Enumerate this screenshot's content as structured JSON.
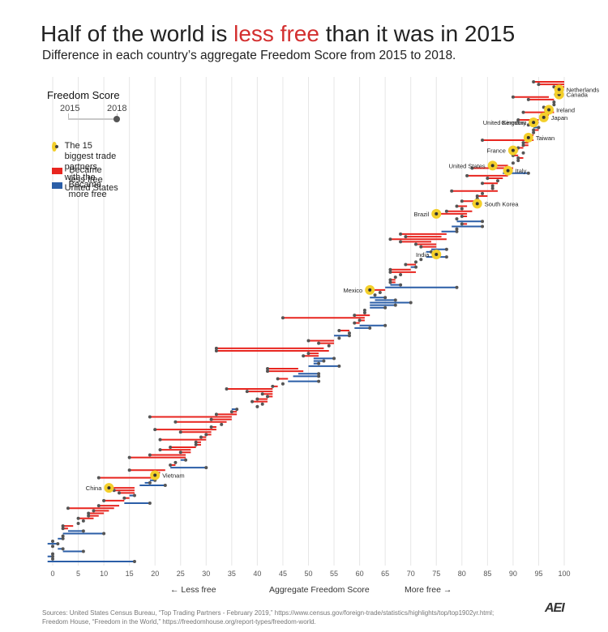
{
  "header": {
    "title_before": "Half of the world is ",
    "title_highlight": "less free",
    "title_after": " than it was in 2015",
    "subtitle": "Difference in each country’s aggregate Freedom Score from 2015 to 2018."
  },
  "legend": {
    "title": "Freedom Score",
    "year_start": "2015",
    "year_end": "2018",
    "trade_partner_line1": "The 15 biggest trade partners",
    "trade_partner_line2": "with the United States",
    "less_free": "Became less free",
    "more_free": "Became more free"
  },
  "axis": {
    "less_free_nav": "← Less free",
    "label": "Aggregate Freedom Score",
    "more_free_nav": "More free →"
  },
  "source": {
    "line1": "Sources: United States Census Bureau, “Top Trading Partners - February 2019,” https://www.census.gov/foreign-trade/statistics/highlights/top/top1902yr.html;",
    "line2": "Freedom House, “Freedom in the World,” https://freedomhouse.org/report-types/freedom-world."
  },
  "logo": "AEI",
  "colors": {
    "less_free": "#e8251f",
    "more_free": "#2b5ea7",
    "trade_partner": "#f3cf2b",
    "endpoint": "#555555",
    "gridline": "#e6e6e6",
    "title_highlight": "#d32f2f"
  },
  "chart_data": {
    "type": "dumbbell",
    "title": "Half of the world is less free than it was in 2015",
    "subtitle": "Difference in each country’s aggregate Freedom Score from 2015 to 2018.",
    "xlabel": "Aggregate Freedom Score",
    "xlim": [
      0,
      100
    ],
    "xticks": [
      0,
      5,
      10,
      15,
      20,
      25,
      30,
      35,
      40,
      45,
      50,
      55,
      60,
      65,
      70,
      75,
      80,
      85,
      90,
      95,
      100
    ],
    "grid": true,
    "legend_position": "top-left",
    "series": [
      {
        "name": "Became less free",
        "color": "#e8251f"
      },
      {
        "name": "Became more free",
        "color": "#2b5ea7"
      }
    ],
    "labeled_countries": [
      {
        "name": "Canada",
        "score_2015": 98,
        "score_2018": 99
      },
      {
        "name": "Netherlands",
        "score_2015": 99,
        "score_2018": 99
      },
      {
        "name": "Ireland",
        "score_2015": 97,
        "score_2018": 97
      },
      {
        "name": "Japan",
        "score_2015": 96,
        "score_2018": 96
      },
      {
        "name": "Germany",
        "score_2015": 95,
        "score_2018": 94
      },
      {
        "name": "United Kingdom",
        "score_2015": 95,
        "score_2018": 94
      },
      {
        "name": "France",
        "score_2015": 91,
        "score_2018": 90
      },
      {
        "name": "United States",
        "score_2015": 89,
        "score_2018": 86
      },
      {
        "name": "Italy",
        "score_2015": 89,
        "score_2018": 89
      },
      {
        "name": "Taiwan",
        "score_2015": 93,
        "score_2018": 93
      },
      {
        "name": "South Korea",
        "score_2015": 82,
        "score_2018": 83
      },
      {
        "name": "Brazil",
        "score_2015": 81,
        "score_2018": 75
      },
      {
        "name": "India",
        "score_2015": 77,
        "score_2018": 75
      },
      {
        "name": "Mexico",
        "score_2015": 65,
        "score_2018": 62
      },
      {
        "name": "Vietnam",
        "score_2015": 20,
        "score_2018": 20
      },
      {
        "name": "China",
        "score_2015": 16,
        "score_2018": 11
      }
    ],
    "countries": [
      [
        100,
        94
      ],
      [
        100,
        95
      ],
      [
        100,
        98
      ],
      [
        99,
        99
      ],
      [
        99,
        99
      ],
      [
        98,
        99
      ],
      [
        97,
        90
      ],
      [
        98,
        93
      ],
      [
        98,
        98
      ],
      [
        98,
        98
      ],
      [
        97,
        96
      ],
      [
        97,
        97
      ],
      [
        98,
        92
      ],
      [
        97,
        96
      ],
      [
        96,
        96
      ],
      [
        95,
        91
      ],
      [
        95,
        94
      ],
      [
        94,
        93
      ],
      [
        94,
        95
      ],
      [
        95,
        94
      ],
      [
        94,
        94
      ],
      [
        94,
        93
      ],
      [
        93,
        93
      ],
      [
        94,
        84
      ],
      [
        93,
        92
      ],
      [
        93,
        92
      ],
      [
        92,
        91
      ],
      [
        91,
        90
      ],
      [
        92,
        92
      ],
      [
        91,
        90
      ],
      [
        92,
        91
      ],
      [
        91,
        91
      ],
      [
        90,
        90
      ],
      [
        89,
        86
      ],
      [
        90,
        82
      ],
      [
        89,
        89
      ],
      [
        88,
        93
      ],
      [
        89,
        81
      ],
      [
        88,
        85
      ],
      [
        87,
        87
      ],
      [
        87,
        84
      ],
      [
        86,
        86
      ],
      [
        86,
        86
      ],
      [
        87,
        78
      ],
      [
        84,
        84
      ],
      [
        85,
        83
      ],
      [
        83,
        83
      ],
      [
        83,
        80
      ],
      [
        82,
        83
      ],
      [
        81,
        79
      ],
      [
        80,
        80
      ],
      [
        82,
        77
      ],
      [
        81,
        75
      ],
      [
        81,
        80
      ],
      [
        79,
        79
      ],
      [
        79,
        84
      ],
      [
        81,
        80
      ],
      [
        78,
        84
      ],
      [
        79,
        79
      ],
      [
        76,
        79
      ],
      [
        77,
        68
      ],
      [
        76,
        69
      ],
      [
        77,
        66
      ],
      [
        74,
        68
      ],
      [
        75,
        71
      ],
      [
        75,
        72
      ],
      [
        74,
        77
      ],
      [
        73,
        74
      ],
      [
        75,
        75
      ],
      [
        73,
        77
      ],
      [
        72,
        72
      ],
      [
        71,
        71
      ],
      [
        71,
        69
      ],
      [
        70,
        71
      ],
      [
        70,
        66
      ],
      [
        71,
        66
      ],
      [
        68,
        68
      ],
      [
        67,
        67
      ],
      [
        67,
        66
      ],
      [
        67,
        66
      ],
      [
        66,
        68
      ],
      [
        65,
        79
      ],
      [
        65,
        62
      ],
      [
        64,
        64
      ],
      [
        63,
        63
      ],
      [
        62,
        65
      ],
      [
        63,
        67
      ],
      [
        62,
        70
      ],
      [
        62,
        67
      ],
      [
        62,
        65
      ],
      [
        61,
        61
      ],
      [
        61,
        61
      ],
      [
        62,
        59
      ],
      [
        61,
        45
      ],
      [
        61,
        60
      ],
      [
        60,
        59
      ],
      [
        60,
        65
      ],
      [
        59,
        62
      ],
      [
        58,
        56
      ],
      [
        58,
        58
      ],
      [
        55,
        58
      ],
      [
        56,
        56
      ],
      [
        55,
        50
      ],
      [
        55,
        52
      ],
      [
        54,
        54
      ],
      [
        53,
        32
      ],
      [
        54,
        32
      ],
      [
        52,
        50
      ],
      [
        52,
        49
      ],
      [
        51,
        55
      ],
      [
        51,
        53
      ],
      [
        51,
        52
      ],
      [
        50,
        56
      ],
      [
        48,
        42
      ],
      [
        49,
        42
      ],
      [
        48,
        52
      ],
      [
        47,
        52
      ],
      [
        46,
        44
      ],
      [
        46,
        52
      ],
      [
        45,
        45
      ],
      [
        44,
        43
      ],
      [
        43,
        34
      ],
      [
        43,
        38
      ],
      [
        43,
        41
      ],
      [
        43,
        42
      ],
      [
        42,
        40
      ],
      [
        42,
        39
      ],
      [
        41,
        41
      ],
      [
        40,
        40
      ],
      [
        35,
        36
      ],
      [
        36,
        35
      ],
      [
        36,
        32
      ],
      [
        35,
        19
      ],
      [
        35,
        31
      ],
      [
        34,
        24
      ],
      [
        33,
        33
      ],
      [
        32,
        31
      ],
      [
        32,
        20
      ],
      [
        31,
        25
      ],
      [
        31,
        30
      ],
      [
        30,
        29
      ],
      [
        30,
        21
      ],
      [
        29,
        28
      ],
      [
        29,
        28
      ],
      [
        28,
        23
      ],
      [
        27,
        21
      ],
      [
        27,
        25
      ],
      [
        26,
        19
      ],
      [
        26,
        15
      ],
      [
        25,
        26
      ],
      [
        24,
        24
      ],
      [
        24,
        23
      ],
      [
        23,
        30
      ],
      [
        22,
        15
      ],
      [
        21,
        20
      ],
      [
        20,
        20
      ],
      [
        20,
        9
      ],
      [
        19,
        20
      ],
      [
        18,
        19
      ],
      [
        17,
        22
      ],
      [
        16,
        11
      ],
      [
        16,
        12
      ],
      [
        16,
        13
      ],
      [
        15,
        16
      ],
      [
        15,
        14
      ],
      [
        14,
        10
      ],
      [
        14,
        19
      ],
      [
        13,
        9
      ],
      [
        12,
        3
      ],
      [
        11,
        8
      ],
      [
        10,
        7
      ],
      [
        9,
        7
      ],
      [
        8,
        5
      ],
      [
        6,
        6
      ],
      [
        5,
        5
      ],
      [
        4,
        2
      ],
      [
        3,
        2
      ],
      [
        3,
        6
      ],
      [
        2,
        10
      ],
      [
        2,
        2
      ],
      [
        1,
        2
      ],
      [
        0,
        0
      ],
      [
        -1,
        1
      ],
      [
        0,
        0
      ],
      [
        1,
        2
      ],
      [
        2,
        6
      ],
      [
        0,
        0
      ],
      [
        -1,
        0
      ],
      [
        0,
        0
      ],
      [
        -1,
        16
      ]
    ]
  }
}
